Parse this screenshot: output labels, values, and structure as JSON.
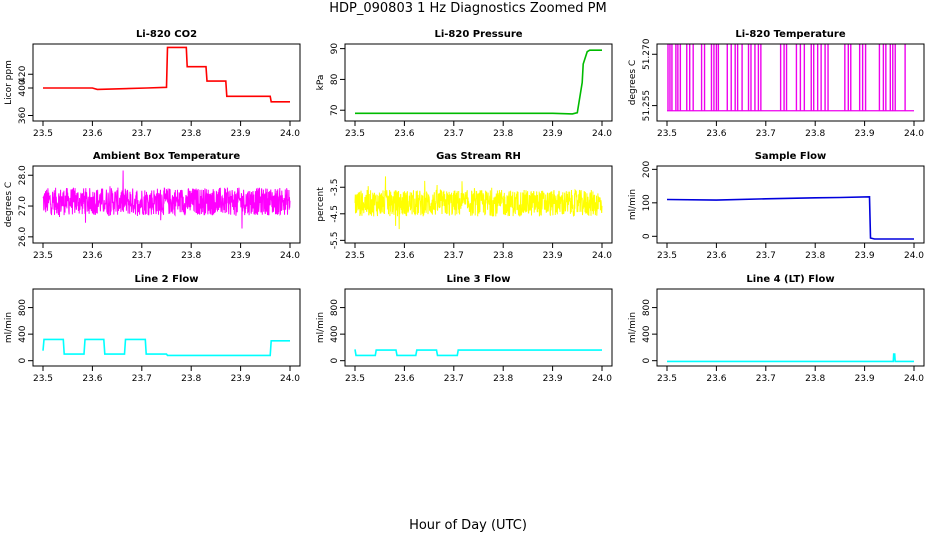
{
  "figure": {
    "title": "HDP_090803  1 Hz Diagnostics Zoomed PM",
    "xlabel": "Hour of Day (UTC)"
  },
  "chart_data": [
    {
      "type": "line",
      "title": "Li-820 CO2",
      "ylabel": "Licor ppm",
      "color": "#ff0000",
      "xlim": [
        23.5,
        24.0
      ],
      "xticks": [
        "23.5",
        "23.6",
        "23.7",
        "23.8",
        "23.9",
        "24.0"
      ],
      "ylim": [
        352,
        464
      ],
      "yticks": [
        [
          "360",
          360
        ],
        [
          "400",
          400
        ],
        [
          "420",
          420
        ]
      ],
      "series": [
        {
          "name": "CO2",
          "x": [
            23.5,
            23.6,
            23.61,
            23.71,
            23.75,
            23.752,
            23.79,
            23.792,
            23.83,
            23.832,
            23.87,
            23.872,
            23.96,
            23.962,
            24.0
          ],
          "y": [
            400,
            400,
            398,
            400,
            401,
            459,
            459,
            431,
            431,
            410,
            410,
            388,
            388,
            380,
            380
          ]
        }
      ]
    },
    {
      "type": "line",
      "title": "Li-820 Pressure",
      "ylabel": "kPa",
      "color": "#00bb00",
      "xlim": [
        23.5,
        24.0
      ],
      "xticks": [
        "23.5",
        "23.6",
        "23.7",
        "23.8",
        "23.9",
        "24.0"
      ],
      "ylim": [
        66.5,
        91.5
      ],
      "yticks": [
        [
          "70",
          70
        ],
        [
          "80",
          80
        ],
        [
          "90",
          90
        ]
      ],
      "series": [
        {
          "name": "Pressure",
          "x": [
            23.5,
            23.7,
            23.9,
            23.94,
            23.95,
            23.96,
            23.962,
            23.97,
            23.975,
            24.0
          ],
          "y": [
            69.0,
            69.0,
            69.0,
            68.8,
            69.2,
            79,
            85,
            89,
            89.5,
            89.5
          ]
        }
      ]
    },
    {
      "type": "line",
      "title": "Li-820 Temperature",
      "ylabel": "degrees C",
      "color": "#ee00ee",
      "xlim": [
        23.5,
        24.0
      ],
      "xticks": [
        "23.5",
        "23.6",
        "23.7",
        "23.8",
        "23.9",
        "24.0"
      ],
      "ylim": [
        51.2505,
        51.273
      ],
      "yticks": [
        [
          "51.255",
          51.255
        ],
        [
          "51.270",
          51.27
        ]
      ],
      "series": [
        {
          "name": "Temperature",
          "baseline": 51.2535,
          "spike_top": 51.273,
          "spike_x": [
            23.502,
            23.506,
            23.51,
            23.518,
            23.522,
            23.527,
            23.54,
            23.546,
            23.553,
            23.57,
            23.576,
            23.59,
            23.595,
            23.6,
            23.604,
            23.622,
            23.63,
            23.638,
            23.643,
            23.652,
            23.665,
            23.67,
            23.678,
            23.685,
            23.69,
            23.73,
            23.737,
            23.742,
            23.762,
            23.77,
            23.778,
            23.792,
            23.797,
            23.805,
            23.812,
            23.82,
            23.826,
            23.86,
            23.867,
            23.872,
            23.89,
            23.896,
            23.902,
            23.93,
            23.938,
            23.943,
            23.952,
            23.957,
            23.962,
            23.982
          ]
        }
      ]
    },
    {
      "type": "line",
      "title": "Ambient Box Temperature",
      "ylabel": "degrees C",
      "color": "#ff00ff",
      "xlim": [
        23.5,
        24.0
      ],
      "xticks": [
        "23.5",
        "23.6",
        "23.7",
        "23.8",
        "23.9",
        "24.0"
      ],
      "ylim": [
        25.8,
        28.3
      ],
      "yticks": [
        [
          "26.0",
          26.0
        ],
        [
          "27.0",
          27.0
        ],
        [
          "28.0",
          28.0
        ]
      ],
      "series": [
        {
          "name": "Ambient",
          "mean": 27.15,
          "noise": 0.45,
          "min": 25.9,
          "max": 28.2
        }
      ]
    },
    {
      "type": "line",
      "title": "Gas Stream RH",
      "ylabel": "percent",
      "color": "#ffff00",
      "xlim": [
        23.5,
        24.0
      ],
      "xticks": [
        "23.5",
        "23.6",
        "23.7",
        "23.8",
        "23.9",
        "24.0"
      ],
      "ylim": [
        -5.6,
        -2.7
      ],
      "yticks": [
        [
          "-5.5",
          -5.5
        ],
        [
          "-4.5",
          -4.5
        ],
        [
          "-3.5",
          -3.5
        ]
      ],
      "series": [
        {
          "name": "RH",
          "mean": -4.1,
          "noise": 0.5,
          "min": -5.4,
          "max": -2.9
        }
      ]
    },
    {
      "type": "line",
      "title": "Sample Flow",
      "ylabel": "ml/min",
      "color": "#0000dd",
      "xlim": [
        23.5,
        24.0
      ],
      "xticks": [
        "23.5",
        "23.6",
        "23.7",
        "23.8",
        "23.9",
        "24.0"
      ],
      "ylim": [
        -20,
        210
      ],
      "yticks": [
        [
          "0",
          0
        ],
        [
          "100",
          100
        ],
        [
          "200",
          200
        ]
      ],
      "series": [
        {
          "name": "Sample Flow",
          "x": [
            23.5,
            23.6,
            23.7,
            23.8,
            23.85,
            23.91,
            23.912,
            23.92,
            24.0
          ],
          "y": [
            110,
            108,
            112,
            115,
            116,
            118,
            -5,
            -8,
            -8
          ]
        }
      ]
    },
    {
      "type": "line",
      "title": "Line 2 Flow",
      "ylabel": "ml/min",
      "color": "#00ffff",
      "xlim": [
        23.5,
        24.0
      ],
      "xticks": [
        "23.5",
        "23.6",
        "23.7",
        "23.8",
        "23.9",
        "24.0"
      ],
      "ylim": [
        -80,
        1080
      ],
      "yticks": [
        [
          "0",
          0
        ],
        [
          "400",
          400
        ],
        [
          "800",
          800
        ]
      ],
      "series": [
        {
          "name": "Line 2",
          "x": [
            23.5,
            23.502,
            23.541,
            23.543,
            23.583,
            23.585,
            23.623,
            23.625,
            23.665,
            23.667,
            23.707,
            23.709,
            23.75,
            23.752,
            23.96,
            23.962,
            24.0
          ],
          "y": [
            150,
            320,
            320,
            100,
            100,
            320,
            320,
            100,
            100,
            320,
            320,
            100,
            100,
            80,
            80,
            300,
            300
          ]
        }
      ]
    },
    {
      "type": "line",
      "title": "Line 3 Flow",
      "ylabel": "ml/min",
      "color": "#00ffff",
      "xlim": [
        23.5,
        24.0
      ],
      "xticks": [
        "23.5",
        "23.6",
        "23.7",
        "23.8",
        "23.9",
        "24.0"
      ],
      "ylim": [
        -80,
        1080
      ],
      "yticks": [
        [
          "0",
          0
        ],
        [
          "400",
          400
        ],
        [
          "800",
          800
        ]
      ],
      "series": [
        {
          "name": "Line 3",
          "x": [
            23.5,
            23.502,
            23.541,
            23.543,
            23.583,
            23.585,
            23.623,
            23.625,
            23.665,
            23.667,
            23.707,
            23.709,
            24.0
          ],
          "y": [
            170,
            80,
            80,
            160,
            160,
            80,
            80,
            160,
            160,
            80,
            80,
            160,
            160
          ]
        }
      ]
    },
    {
      "type": "line",
      "title": "Line 4 (LT) Flow",
      "ylabel": "ml/min",
      "color": "#00ffff",
      "xlim": [
        23.5,
        24.0
      ],
      "xticks": [
        "23.5",
        "23.6",
        "23.7",
        "23.8",
        "23.9",
        "24.0"
      ],
      "ylim": [
        -80,
        1080
      ],
      "yticks": [
        [
          "0",
          0
        ],
        [
          "400",
          400
        ],
        [
          "800",
          800
        ]
      ],
      "series": [
        {
          "name": "Line 4",
          "x": [
            23.5,
            23.958,
            23.959,
            23.961,
            23.962,
            24.0
          ],
          "y": [
            -10,
            -10,
            100,
            100,
            -10,
            -10
          ]
        }
      ]
    }
  ]
}
